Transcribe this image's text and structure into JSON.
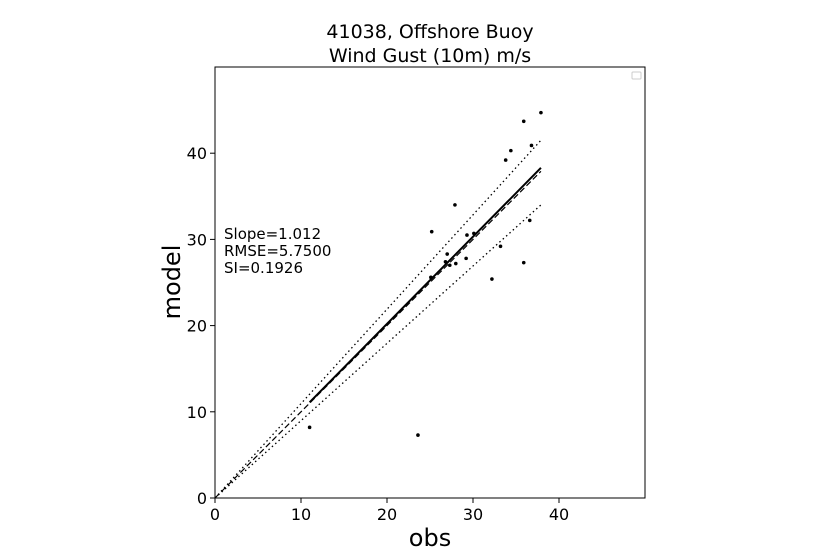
{
  "chart_data": {
    "type": "scatter",
    "title_line1": "41038, Offshore Buoy",
    "title_line2": "Wind Gust (10m) m/s",
    "xlabel": "obs",
    "ylabel": "model",
    "xlim": [
      0,
      50
    ],
    "ylim": [
      0,
      50
    ],
    "xticks": [
      "0",
      "10",
      "20",
      "30",
      "40"
    ],
    "yticks": [
      "0",
      "10",
      "20",
      "30",
      "40"
    ],
    "xtick_values": [
      0,
      10,
      20,
      30,
      40
    ],
    "ytick_values": [
      0,
      10,
      20,
      30,
      40
    ],
    "stats": {
      "slope": "Slope=1.012",
      "rmse": "RMSE=5.7500",
      "si": "SI=0.1926"
    },
    "points": [
      {
        "x": 11.0,
        "y": 8.2
      },
      {
        "x": 23.6,
        "y": 7.3
      },
      {
        "x": 25.1,
        "y": 25.6
      },
      {
        "x": 25.2,
        "y": 30.9
      },
      {
        "x": 26.8,
        "y": 27.4
      },
      {
        "x": 27.0,
        "y": 28.3
      },
      {
        "x": 27.3,
        "y": 27.0
      },
      {
        "x": 27.9,
        "y": 34.0
      },
      {
        "x": 28.0,
        "y": 27.2
      },
      {
        "x": 29.2,
        "y": 27.8
      },
      {
        "x": 29.3,
        "y": 30.5
      },
      {
        "x": 30.1,
        "y": 30.7
      },
      {
        "x": 32.2,
        "y": 25.4
      },
      {
        "x": 33.2,
        "y": 29.2
      },
      {
        "x": 33.8,
        "y": 39.2
      },
      {
        "x": 34.4,
        "y": 40.3
      },
      {
        "x": 35.9,
        "y": 43.7
      },
      {
        "x": 35.9,
        "y": 27.3
      },
      {
        "x": 36.6,
        "y": 32.2
      },
      {
        "x": 36.8,
        "y": 40.9
      },
      {
        "x": 37.9,
        "y": 44.7
      }
    ],
    "fit_line": {
      "x": [
        11.0,
        37.9
      ],
      "y": [
        11.1,
        38.3
      ]
    },
    "one_to_one_line": {
      "x": [
        0,
        37.9
      ],
      "y": [
        0,
        37.9
      ]
    },
    "upper_bound_line": {
      "x": [
        0,
        37.9
      ],
      "y": [
        0,
        41.5
      ]
    },
    "lower_bound_line": {
      "x": [
        0,
        37.9
      ],
      "y": [
        0,
        34.0
      ]
    },
    "legend": "top-right (empty)",
    "grid": false
  }
}
